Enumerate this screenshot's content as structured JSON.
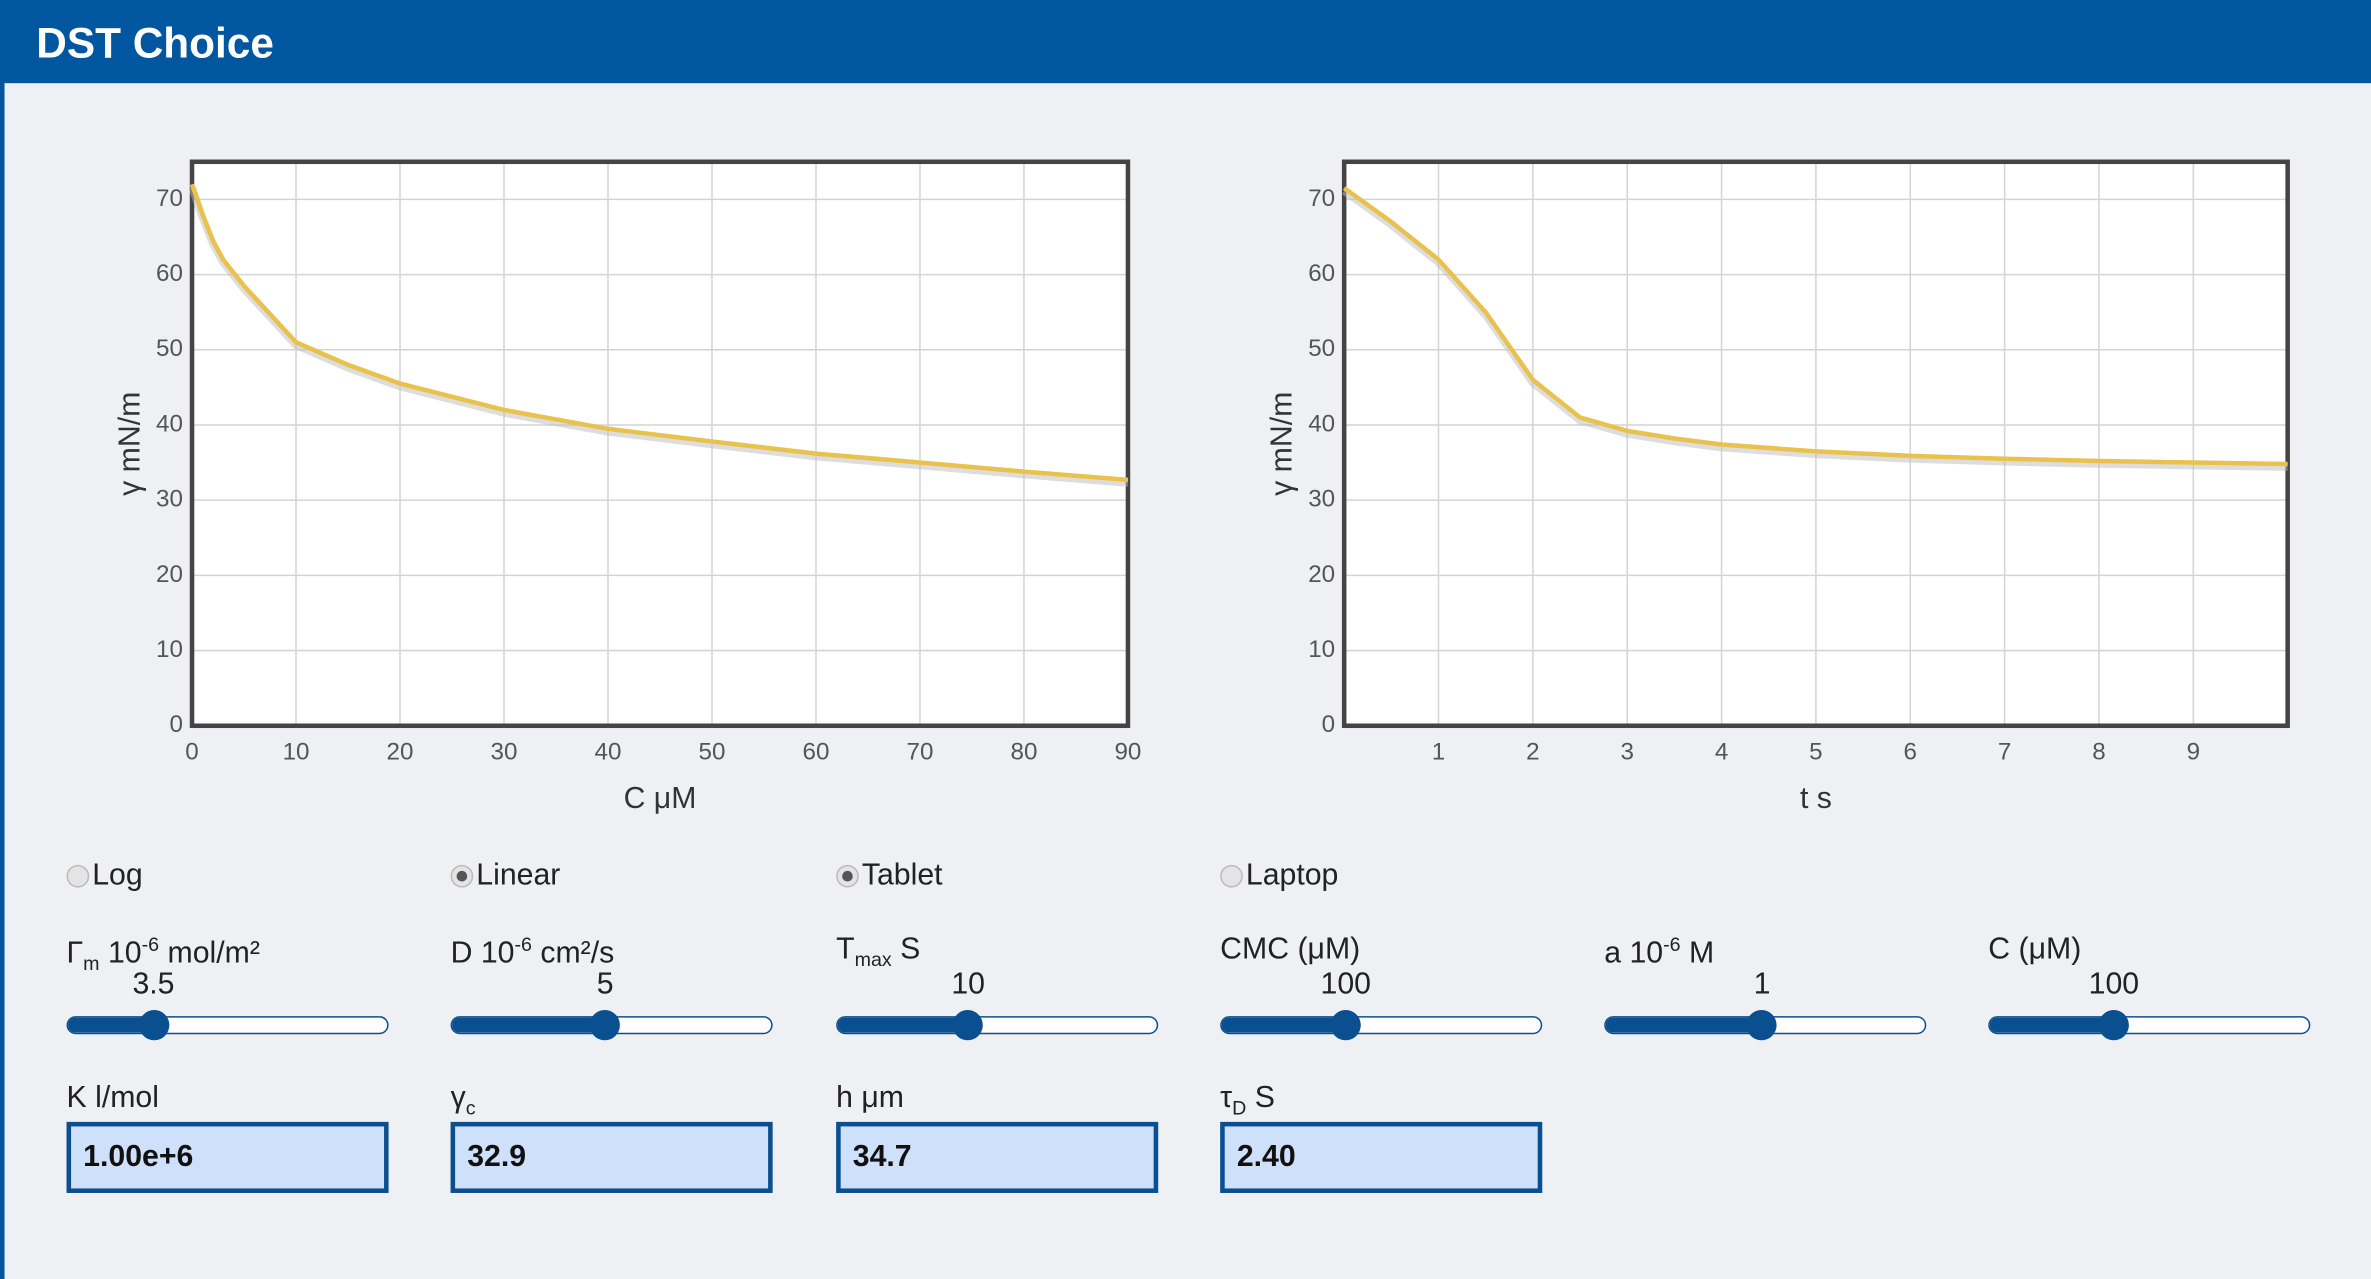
{
  "header": {
    "title": "DST Choice"
  },
  "chart_data": [
    {
      "type": "line",
      "xlabel": "C μM",
      "ylabel": "γ mN/m",
      "color": "#e9c24e",
      "grid": true,
      "x": [
        0,
        1,
        2,
        3,
        5,
        7,
        10,
        15,
        20,
        30,
        40,
        50,
        60,
        70,
        80,
        90
      ],
      "values": [
        72,
        68,
        64.5,
        62,
        58.5,
        55.5,
        51,
        48,
        45.5,
        42,
        39.5,
        37.8,
        36.2,
        35,
        33.8,
        32.7
      ],
      "xlim": [
        0,
        90
      ],
      "ylim": [
        0,
        75
      ],
      "xticks": [
        0,
        10,
        20,
        30,
        40,
        50,
        60,
        70,
        80,
        90
      ],
      "yticks": [
        0,
        10,
        20,
        30,
        40,
        50,
        60,
        70
      ]
    },
    {
      "type": "line",
      "xlabel": "t s",
      "ylabel": "γ mN/m",
      "color": "#e9c24e",
      "grid": true,
      "x": [
        0,
        0.5,
        1,
        1.5,
        2,
        2.5,
        3,
        3.5,
        4,
        5,
        6,
        7,
        8,
        9,
        10
      ],
      "values": [
        71.5,
        67,
        62,
        55,
        46,
        41,
        39.2,
        38.2,
        37.4,
        36.5,
        35.9,
        35.5,
        35.2,
        35,
        34.8
      ],
      "xlim": [
        0,
        10
      ],
      "ylim": [
        0,
        75
      ],
      "xticks": [
        1,
        2,
        3,
        4,
        5,
        6,
        7,
        8,
        9
      ],
      "yticks": [
        0,
        10,
        20,
        30,
        40,
        50,
        60,
        70
      ]
    }
  ],
  "controls": {
    "radios": [
      {
        "label": "Log",
        "checked": false
      },
      {
        "label": "Linear",
        "checked": true
      },
      {
        "label": "Tablet",
        "checked": true
      },
      {
        "label": "Laptop",
        "checked": false
      }
    ],
    "sliders": [
      {
        "label": [
          {
            "text": "Γ"
          },
          {
            "text": "m",
            "pos": "sub"
          },
          {
            "text": " 10"
          },
          {
            "text": "-6",
            "pos": "sup"
          },
          {
            "text": " mol/m²"
          }
        ],
        "value": 3.5
      },
      {
        "label": [
          {
            "text": "D 10"
          },
          {
            "text": "-6",
            "pos": "sup"
          },
          {
            "text": " cm²/s"
          }
        ],
        "value": 5
      },
      {
        "label": [
          {
            "text": "T"
          },
          {
            "text": "max",
            "pos": "sub"
          },
          {
            "text": " S"
          }
        ],
        "value": 10
      },
      {
        "label": [
          {
            "text": "CMC (μM)"
          }
        ],
        "value": 100
      },
      {
        "label": [
          {
            "text": "a 10"
          },
          {
            "text": "-6",
            "pos": "sup"
          },
          {
            "text": " M"
          }
        ],
        "value": 1
      },
      {
        "label": [
          {
            "text": "C (μM)"
          }
        ],
        "value": 100
      }
    ],
    "outputs": [
      {
        "label": [
          {
            "text": "K l/mol"
          }
        ],
        "value": "1.00e+6"
      },
      {
        "label": [
          {
            "text": "γ"
          },
          {
            "text": "c",
            "pos": "sub"
          }
        ],
        "value": 32.9
      },
      {
        "label": [
          {
            "text": "h μm"
          }
        ],
        "value": 34.7
      },
      {
        "label": [
          {
            "text": "τ"
          },
          {
            "text": "D",
            "pos": "sub"
          },
          {
            "text": " S"
          }
        ],
        "value": "2.40"
      }
    ]
  }
}
